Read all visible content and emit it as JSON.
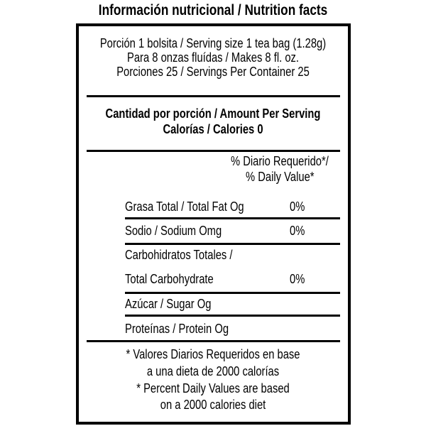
{
  "title": "Información nutricional / Nutrition facts",
  "serving": [
    "Porción 1 bolsita /  Serving size 1 tea bag (1.28g)",
    "Para 8 onzas fluídas / Makes 8 fl. oz.",
    "Porciones 25 / Servings Per Container 25"
  ],
  "amount": {
    "heading": "Cantidad por porción / Amount Per Serving",
    "calories": "Calorías / Calories 0"
  },
  "dv_header": [
    "% Diario Requerido*/",
    "% Daily Value*"
  ],
  "nutrients": [
    {
      "label": "Grasa Total / Total Fat Og",
      "dv": "0%"
    },
    {
      "label": "Sodio / Sodium Omg",
      "dv": "0%"
    },
    {
      "label_line1": "Carbohidratos Totales /",
      "label": "Total Carbohydrate",
      "dv": "0%"
    },
    {
      "label": "Azúcar / Sugar Og"
    },
    {
      "label": "Proteínas / Protein Og"
    }
  ],
  "footnote": [
    "* Valores Diarios Requeridos en base",
    "a una dieta de 2000 calorías",
    "* Percent  Daily Values are based",
    "on a 2000 calories diet"
  ]
}
